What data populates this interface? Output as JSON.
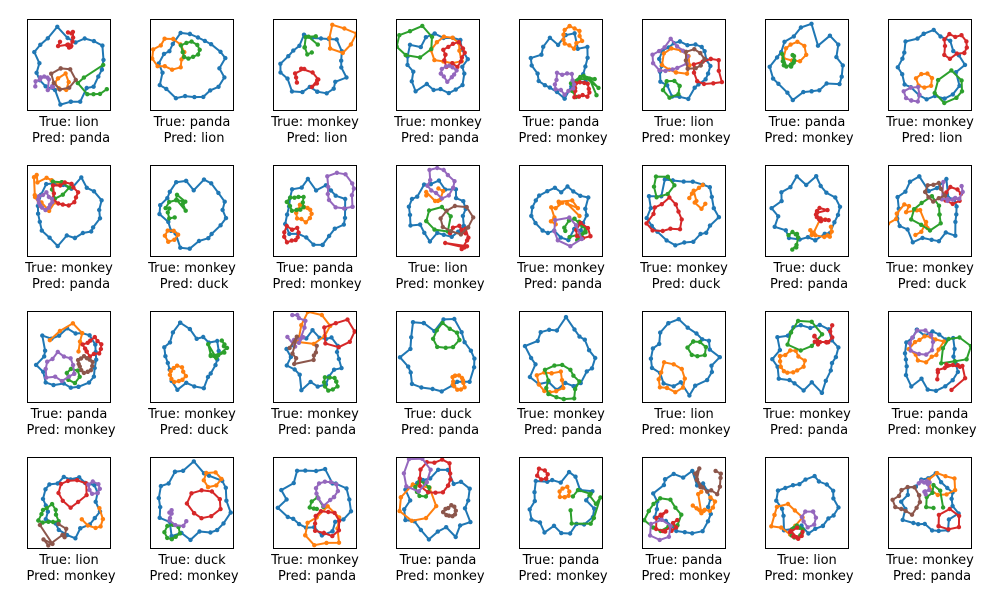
{
  "chart_data": {
    "type": "sketch_grid",
    "rows": 4,
    "cols": 8,
    "stroke_colors": [
      "#1f77b4",
      "#ff7f0e",
      "#2ca02c",
      "#d62728",
      "#9467bd",
      "#8c564b",
      "#e377c2",
      "#7f7f7f",
      "#bcbd22",
      "#17becf"
    ],
    "panels": [
      {
        "true": "lion",
        "pred": "panda"
      },
      {
        "true": "panda",
        "pred": "lion"
      },
      {
        "true": "monkey",
        "pred": "lion"
      },
      {
        "true": "monkey",
        "pred": "panda"
      },
      {
        "true": "panda",
        "pred": "monkey"
      },
      {
        "true": "lion",
        "pred": "monkey"
      },
      {
        "true": "panda",
        "pred": "monkey"
      },
      {
        "true": "monkey",
        "pred": "lion"
      },
      {
        "true": "monkey",
        "pred": "panda"
      },
      {
        "true": "monkey",
        "pred": "duck"
      },
      {
        "true": "panda",
        "pred": "monkey"
      },
      {
        "true": "lion",
        "pred": "monkey"
      },
      {
        "true": "monkey",
        "pred": "panda"
      },
      {
        "true": "monkey",
        "pred": "duck"
      },
      {
        "true": "duck",
        "pred": "panda"
      },
      {
        "true": "monkey",
        "pred": "duck"
      },
      {
        "true": "panda",
        "pred": "monkey"
      },
      {
        "true": "monkey",
        "pred": "duck"
      },
      {
        "true": "monkey",
        "pred": "panda"
      },
      {
        "true": "duck",
        "pred": "panda"
      },
      {
        "true": "monkey",
        "pred": "panda"
      },
      {
        "true": "lion",
        "pred": "monkey"
      },
      {
        "true": "monkey",
        "pred": "panda"
      },
      {
        "true": "panda",
        "pred": "monkey"
      },
      {
        "true": "lion",
        "pred": "monkey"
      },
      {
        "true": "duck",
        "pred": "monkey"
      },
      {
        "true": "monkey",
        "pred": "panda"
      },
      {
        "true": "panda",
        "pred": "monkey"
      },
      {
        "true": "panda",
        "pred": "monkey"
      },
      {
        "true": "panda",
        "pred": "monkey"
      },
      {
        "true": "lion",
        "pred": "monkey"
      },
      {
        "true": "monkey",
        "pred": "panda"
      }
    ],
    "labels": {
      "true_prefix": "True: ",
      "pred_prefix": "Pred: "
    }
  }
}
